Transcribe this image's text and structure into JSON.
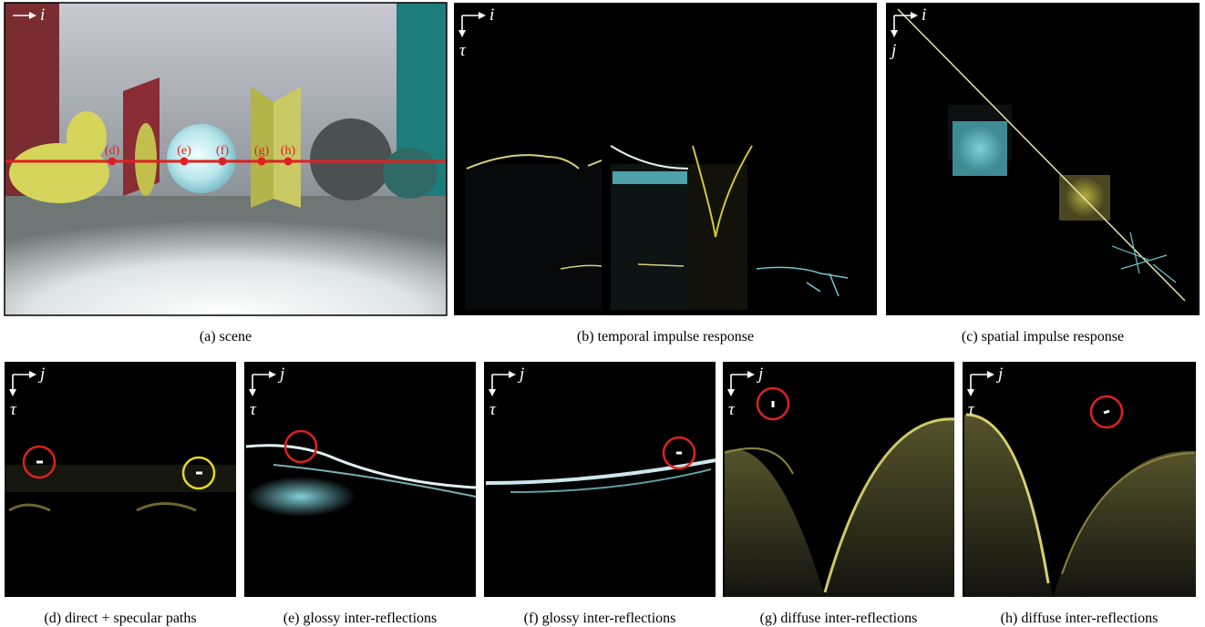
{
  "panels": [
    {
      "caption": "(a)  scene",
      "axis_h": "i"
    },
    {
      "caption": "(b)  temporal impulse response",
      "axis_h": "i",
      "axis_v": "τ"
    },
    {
      "caption": "(c)  spatial impulse response",
      "axis_h": "i",
      "axis_v": "j"
    },
    {
      "caption": "(d)  direct + specular paths",
      "axis_h": "j",
      "axis_v": "τ"
    },
    {
      "caption": "(e)  glossy inter-reflections",
      "axis_h": "j",
      "axis_v": "τ"
    },
    {
      "caption": "(f)  glossy inter-reflections",
      "axis_h": "j",
      "axis_v": "τ"
    },
    {
      "caption": "(g)  diffuse inter-reflections",
      "axis_h": "j",
      "axis_v": "τ"
    },
    {
      "caption": "(h)  diffuse inter-reflections",
      "axis_h": "j",
      "axis_v": "τ"
    }
  ],
  "scene_markers": [
    "(d)",
    "(e)",
    "(f)",
    "(g)",
    "(h)"
  ]
}
